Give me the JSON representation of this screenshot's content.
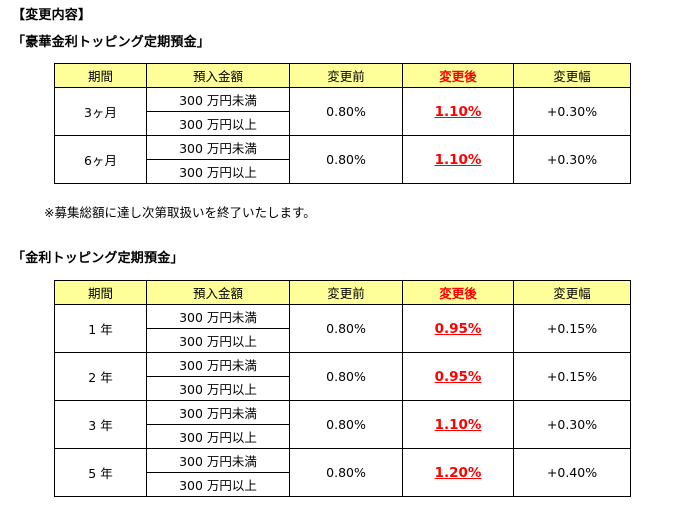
{
  "header": {
    "title": "【変更内容】"
  },
  "section1": {
    "title": "「豪華金利トッピング定期預金」",
    "columns": [
      "期間",
      "預入金額",
      "変更前",
      "変更後",
      "変更幅"
    ],
    "rows": [
      {
        "term": "3ヶ月",
        "amounts": [
          "300 万円未満",
          "300 万円以上"
        ],
        "before": "0.80%",
        "after": "1.10%",
        "change": "+0.30%"
      },
      {
        "term": "6ヶ月",
        "amounts": [
          "300 万円未満",
          "300 万円以上"
        ],
        "before": "0.80%",
        "after": "1.10%",
        "change": "+0.30%"
      }
    ],
    "note": "※募集総額に達し次第取扱いを終了いたします。"
  },
  "section2": {
    "title": "「金利トッピング定期預金」",
    "columns": [
      "期間",
      "預入金額",
      "変更前",
      "変更後",
      "変更幅"
    ],
    "rows": [
      {
        "term": "1 年",
        "amounts": [
          "300 万円未満",
          "300 万円以上"
        ],
        "before": "0.80%",
        "after": "0.95%",
        "change": "+0.15%"
      },
      {
        "term": "2 年",
        "amounts": [
          "300 万円未満",
          "300 万円以上"
        ],
        "before": "0.80%",
        "after": "0.95%",
        "change": "+0.15%"
      },
      {
        "term": "3 年",
        "amounts": [
          "300 万円未満",
          "300 万円以上"
        ],
        "before": "0.80%",
        "after": "1.10%",
        "change": "+0.30%"
      },
      {
        "term": "5 年",
        "amounts": [
          "300 万円未満",
          "300 万円以上"
        ],
        "before": "0.80%",
        "after": "1.20%",
        "change": "+0.40%"
      }
    ]
  },
  "colors": {
    "header_bg": "#ffff99",
    "highlight": "#ff0000"
  }
}
